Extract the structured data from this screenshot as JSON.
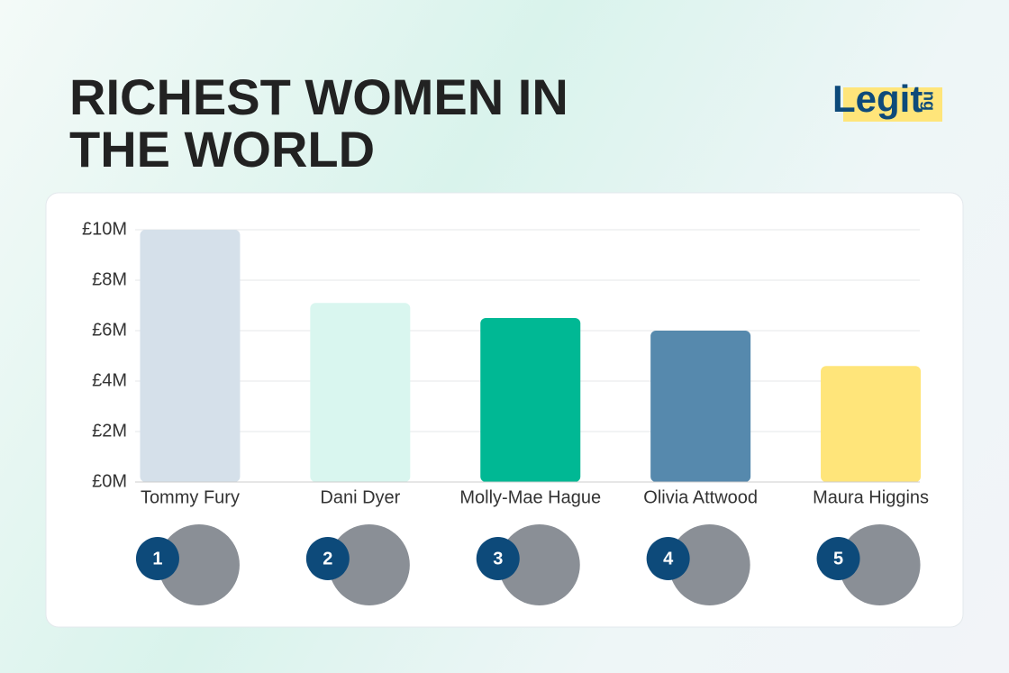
{
  "logo": {
    "main": "Legit",
    "suffix": "ng"
  },
  "chart_data": {
    "type": "bar",
    "title": [
      "RICHEST WOMEN IN",
      "THE WORLD"
    ],
    "categories": [
      "Tommy Fury",
      "Dani Dyer",
      "Molly-Mae Hague",
      "Olivia Attwood",
      "Maura Higgins"
    ],
    "values": [
      10000000,
      7100000,
      6500000,
      6000000,
      4600000
    ],
    "colors": [
      "#d5e0ea",
      "#d9f6ef",
      "#00b894",
      "#5689ad",
      "#ffe57a"
    ],
    "ranks": [
      1,
      2,
      3,
      4,
      5
    ],
    "ylim": [
      0,
      10000000
    ],
    "yticks": [
      {
        "value": 0,
        "label": "£0M"
      },
      {
        "value": 2000000,
        "label": "£2M"
      },
      {
        "value": 4000000,
        "label": "£4M"
      },
      {
        "value": 6000000,
        "label": "£6M"
      },
      {
        "value": 8000000,
        "label": "£8M"
      },
      {
        "value": 10000000,
        "label": "£10M"
      }
    ],
    "grid": true
  }
}
